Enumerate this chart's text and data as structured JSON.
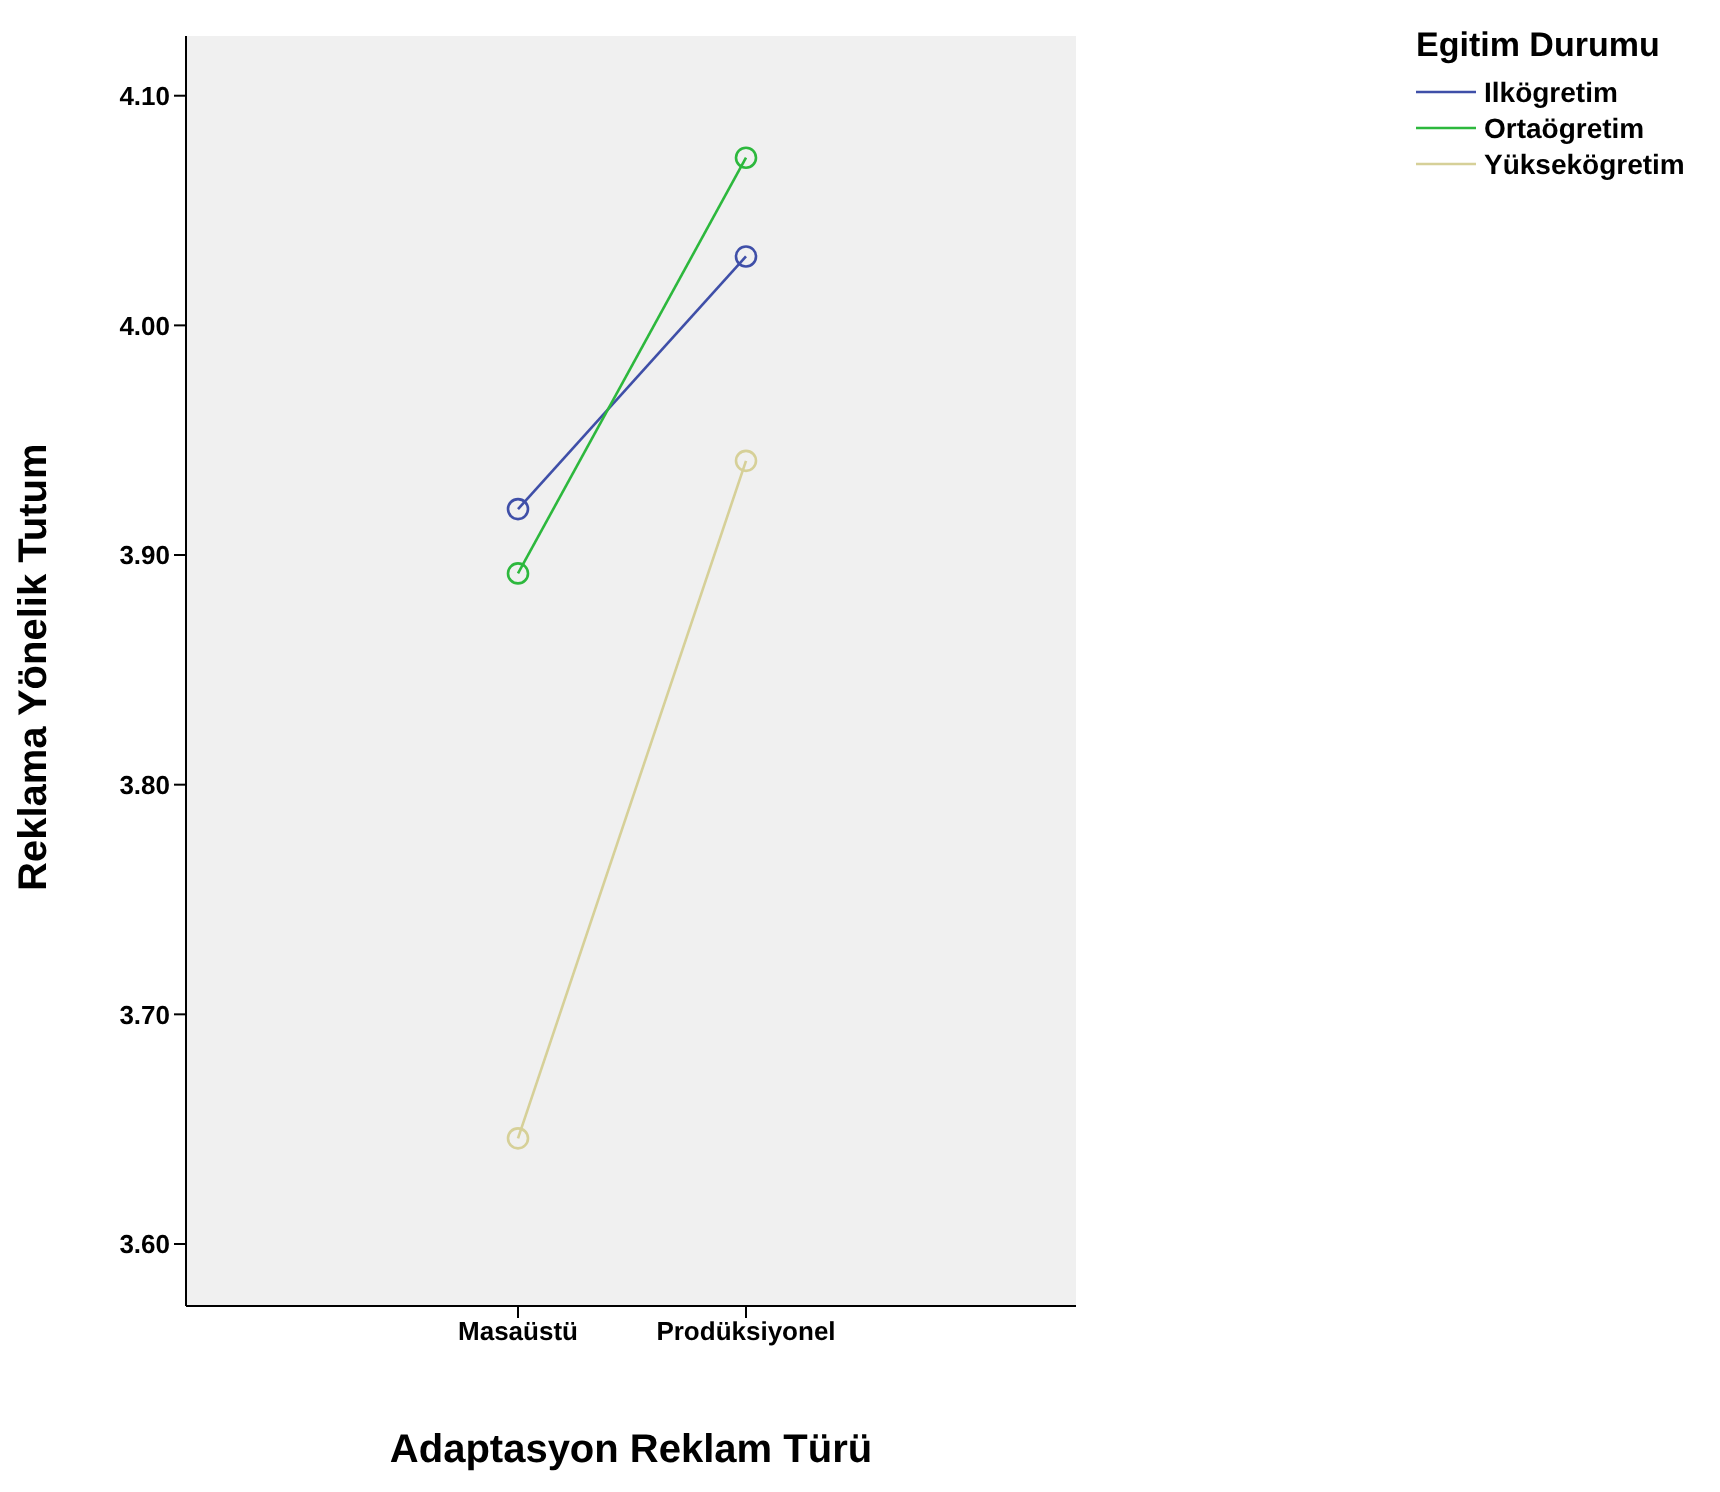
{
  "chart_data": {
    "type": "line",
    "xlabel": "Adaptasyon Reklam Türü",
    "ylabel": "Reklama Yönelik Tutum",
    "legend_title": "Egitim Durumu",
    "categories": [
      "Masaüstü",
      "Prodüksiyonel"
    ],
    "series": [
      {
        "name": "Ilkögretim",
        "color": "#3f4fa8",
        "values": [
          3.92,
          4.03
        ]
      },
      {
        "name": "Ortaögretim",
        "color": "#2db83d",
        "values": [
          3.892,
          4.073
        ]
      },
      {
        "name": "Yüksekögretim",
        "color": "#d6d098",
        "values": [
          3.646,
          3.941
        ]
      }
    ],
    "ylim": [
      3.573,
      4.126
    ],
    "yticks": [
      {
        "value": 3.6,
        "label": "3.60"
      },
      {
        "value": 3.7,
        "label": "3.70"
      },
      {
        "value": 3.8,
        "label": "3.80"
      },
      {
        "value": 3.9,
        "label": "3.90"
      },
      {
        "value": 4.0,
        "label": "4.00"
      },
      {
        "value": 4.1,
        "label": "4.10"
      }
    ],
    "marker": "circle",
    "legend": "top right",
    "grid": false
  }
}
